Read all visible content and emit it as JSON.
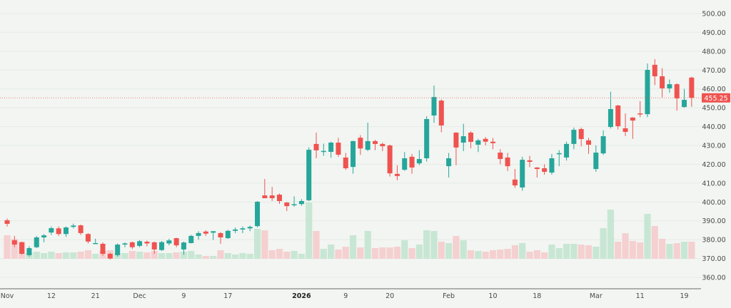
{
  "chart_data": {
    "type": "candlestick",
    "title": "",
    "ylim": [
      355,
      505
    ],
    "grid": true,
    "yticks": [
      "500.00",
      "490.00",
      "480.00",
      "470.00",
      "460.00",
      "450.00",
      "440.00",
      "430.00",
      "420.00",
      "410.00",
      "400.00",
      "390.00",
      "380.00",
      "370.00",
      "360.00"
    ],
    "ytick_values": [
      500,
      490,
      480,
      470,
      460,
      450,
      440,
      430,
      420,
      410,
      400,
      390,
      380,
      370,
      360
    ],
    "xticks": [
      {
        "label": "Nov",
        "index": 0
      },
      {
        "label": "12",
        "index": 6
      },
      {
        "label": "21",
        "index": 12
      },
      {
        "label": "Dec",
        "index": 18
      },
      {
        "label": "9",
        "index": 24
      },
      {
        "label": "17",
        "index": 30
      },
      {
        "label": "2026",
        "index": 40,
        "bold": true
      },
      {
        "label": "9",
        "index": 46
      },
      {
        "label": "20",
        "index": 52
      },
      {
        "label": "Feb",
        "index": 60
      },
      {
        "label": "10",
        "index": 66
      },
      {
        "label": "18",
        "index": 72
      },
      {
        "label": "Mar",
        "index": 80
      },
      {
        "label": "11",
        "index": 86
      },
      {
        "label": "19",
        "index": 92
      }
    ],
    "last_price": "455.25",
    "last_price_value": 455.25,
    "colors": {
      "up": "#26a69a",
      "down": "#ef5350",
      "up_volume": "#c8e6d4",
      "down_volume": "#f5d0d0",
      "background": "#f2f5f2"
    },
    "ohlc": [
      [
        390.3,
        391.2,
        387,
        388.4
      ],
      [
        379.7,
        382,
        376,
        377.4
      ],
      [
        378.6,
        379,
        372,
        372.5
      ],
      [
        371.8,
        376.5,
        371,
        375.5
      ],
      [
        376,
        382,
        375.5,
        381.2
      ],
      [
        381.2,
        383,
        378.6,
        382.3
      ],
      [
        383.8,
        387,
        382.5,
        386.1
      ],
      [
        386,
        387,
        382,
        383
      ],
      [
        383,
        387,
        381.5,
        386.5
      ],
      [
        386.8,
        388.5,
        386,
        387.5
      ],
      [
        387.6,
        388,
        382.5,
        383.5
      ],
      [
        383,
        383.5,
        378,
        379
      ],
      [
        378.2,
        380.5,
        378,
        378.2
      ],
      [
        377.8,
        378.5,
        371.5,
        372.5
      ],
      [
        372.5,
        373,
        369.5,
        370
      ],
      [
        371.8,
        378,
        371,
        377.4
      ],
      [
        377.4,
        378.6,
        376,
        378
      ],
      [
        378.6,
        379,
        375,
        376
      ],
      [
        376.7,
        379.8,
        376,
        379.2
      ],
      [
        378.9,
        379.5,
        376.5,
        378
      ],
      [
        378.6,
        379,
        372.5,
        374.8
      ],
      [
        374.5,
        379.3,
        374,
        378.7
      ],
      [
        378,
        380.5,
        377,
        379.6
      ],
      [
        380.8,
        381,
        376,
        377
      ],
      [
        374.8,
        379,
        372,
        378.5
      ],
      [
        378.2,
        382.5,
        378,
        382
      ],
      [
        382,
        384.5,
        380,
        383.5
      ],
      [
        384.3,
        385,
        382,
        383.2
      ],
      [
        383.7,
        384.5,
        379.8,
        384.5
      ],
      [
        383.5,
        384,
        377.8,
        381.2
      ],
      [
        380.8,
        385.2,
        380.5,
        384.7
      ],
      [
        384.7,
        386.5,
        383.5,
        385.4
      ],
      [
        385.4,
        387,
        383.5,
        386
      ],
      [
        386,
        387.5,
        384.5,
        386.8
      ],
      [
        387.2,
        400.5,
        386.5,
        400.1
      ],
      [
        403.5,
        412.2,
        402,
        402
      ],
      [
        403.5,
        408,
        400.5,
        402
      ],
      [
        403.9,
        404.5,
        399,
        400.5
      ],
      [
        399.7,
        400,
        395.2,
        397.8
      ],
      [
        398.5,
        403,
        397.5,
        398.8
      ],
      [
        398.9,
        401.5,
        398,
        400.5
      ],
      [
        400.9,
        429,
        400.5,
        427.7
      ],
      [
        430.8,
        436.8,
        423.2,
        427.4
      ],
      [
        427,
        431,
        424.5,
        427.1
      ],
      [
        426.6,
        432,
        423.5,
        431.5
      ],
      [
        431.5,
        434,
        424,
        425.1
      ],
      [
        423.6,
        426,
        417,
        417.9
      ],
      [
        418.6,
        432.5,
        415,
        432.3
      ],
      [
        434.1,
        435.5,
        425,
        428.4
      ],
      [
        427.7,
        442.1,
        427,
        432.3
      ],
      [
        432.3,
        433,
        427.5,
        430.8
      ],
      [
        430.8,
        431.5,
        427,
        429.6
      ],
      [
        430,
        430.5,
        413.5,
        415.2
      ],
      [
        414.9,
        419.5,
        411.5,
        413.8
      ],
      [
        417.1,
        426.5,
        416.5,
        423.2
      ],
      [
        424,
        425.5,
        415,
        418.3
      ],
      [
        420.5,
        427.5,
        419.5,
        422.8
      ],
      [
        423.2,
        445.5,
        421.5,
        444
      ],
      [
        445.9,
        461.8,
        442,
        455.7
      ],
      [
        453.8,
        454.5,
        437,
        440.6
      ],
      [
        419,
        426,
        413,
        423.2
      ],
      [
        436.8,
        437,
        419.5,
        428.9
      ],
      [
        431.5,
        441.5,
        427,
        434.9
      ],
      [
        436.8,
        437.5,
        428.5,
        431.9
      ],
      [
        430.4,
        433.5,
        426.5,
        432.7
      ],
      [
        433.5,
        434.5,
        430,
        432
      ],
      [
        432,
        434,
        428,
        431.2
      ],
      [
        426.2,
        428,
        420,
        422.8
      ],
      [
        423.6,
        426,
        416.5,
        419
      ],
      [
        411.9,
        417.5,
        407.5,
        408.8
      ],
      [
        407.7,
        424,
        406,
        422.4
      ],
      [
        422.1,
        424.5,
        418.5,
        421.3
      ],
      [
        418.3,
        418.5,
        413,
        417.5
      ],
      [
        417.9,
        420,
        414.5,
        416
      ],
      [
        415.6,
        425.5,
        414.5,
        423.2
      ],
      [
        425.8,
        427.5,
        419,
        425.9
      ],
      [
        423.6,
        432,
        422,
        430.8
      ],
      [
        430.8,
        439.5,
        428,
        438.3
      ],
      [
        438.7,
        439.5,
        429.5,
        433.4
      ],
      [
        432.7,
        434,
        425.5,
        430.4
      ],
      [
        417.5,
        430,
        416,
        426.2
      ],
      [
        425.8,
        438,
        425,
        434.9
      ],
      [
        439.8,
        458.5,
        439,
        449.3
      ],
      [
        451.2,
        451.5,
        438.5,
        440.2
      ],
      [
        439.1,
        447,
        435,
        437.2
      ],
      [
        444.8,
        445,
        433.5,
        443.2
      ],
      [
        447,
        453.5,
        445,
        446.6
      ],
      [
        446.6,
        473.5,
        445,
        470.1
      ],
      [
        472.8,
        475.8,
        462,
        466.7
      ],
      [
        466.7,
        471,
        455.5,
        460.3
      ],
      [
        460.3,
        465,
        458,
        462.5
      ],
      [
        462.5,
        463,
        448.5,
        455
      ],
      [
        450.4,
        460,
        450,
        454.2
      ],
      [
        466,
        466.5,
        450.5,
        455.25
      ]
    ],
    "volume_relative": [
      33,
      28,
      24,
      8,
      10,
      8,
      10,
      8,
      9,
      9,
      10,
      12,
      7,
      11,
      12,
      8,
      8,
      11,
      10,
      9,
      11,
      8,
      8,
      9,
      10,
      11,
      6,
      4,
      4,
      12,
      8,
      6,
      8,
      7,
      42,
      40,
      12,
      14,
      10,
      11,
      7,
      79,
      39,
      14,
      20,
      13,
      17,
      33,
      16,
      39,
      15,
      16,
      16,
      17,
      26,
      15,
      20,
      40,
      39,
      24,
      22,
      32,
      26,
      12,
      11,
      10,
      12,
      13,
      14,
      19,
      22,
      10,
      12,
      9,
      20,
      15,
      21,
      21,
      20,
      19,
      17,
      43,
      69,
      24,
      36,
      25,
      23,
      63,
      46,
      28,
      21,
      22,
      24,
      24
    ]
  }
}
